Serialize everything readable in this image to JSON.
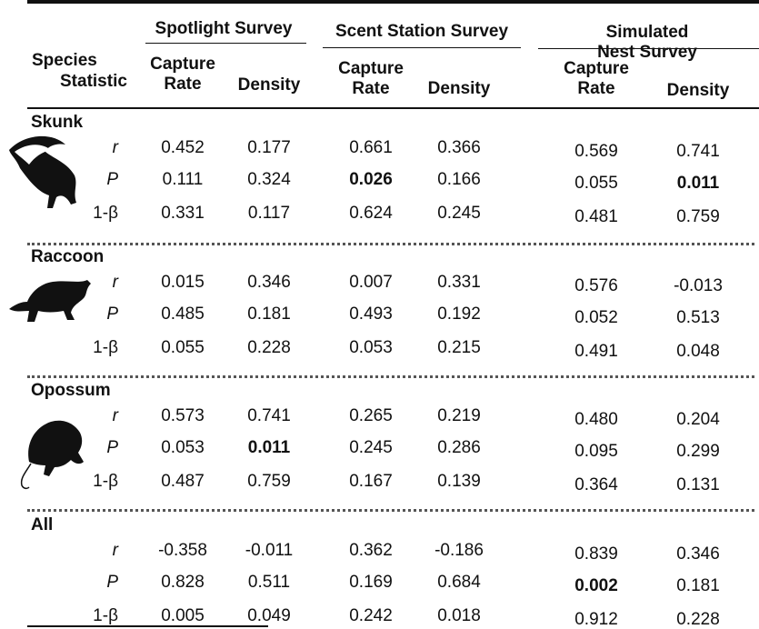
{
  "header": {
    "row_header": [
      "Species",
      "Statistic"
    ],
    "groups": [
      "Spotlight Survey",
      "Scent Station Survey",
      "Simulated Nest Survey"
    ],
    "columns": [
      "Capture\nRate",
      "Density",
      "Capture\nRate",
      "Density",
      "Capture\nRate",
      "Density"
    ]
  },
  "sections": [
    {
      "species": "Skunk",
      "rows": [
        {
          "statistic": "r",
          "values": [
            "0.452",
            "0.177",
            "0.661",
            "0.366",
            "0.569",
            "0.741"
          ],
          "bold": []
        },
        {
          "statistic": "P",
          "values": [
            "0.111",
            "0.324",
            "0.026",
            "0.166",
            "0.055",
            "0.011"
          ],
          "bold": [
            2,
            5
          ]
        },
        {
          "statistic": "1-β",
          "values": [
            "0.331",
            "0.117",
            "0.624",
            "0.245",
            "0.481",
            "0.759"
          ],
          "bold": []
        }
      ]
    },
    {
      "species": "Raccoon",
      "rows": [
        {
          "statistic": "r",
          "values": [
            "0.015",
            "0.346",
            "0.007",
            "0.331",
            "0.576",
            "-0.013"
          ],
          "bold": []
        },
        {
          "statistic": "P",
          "values": [
            "0.485",
            "0.181",
            "0.493",
            "0.192",
            "0.052",
            "0.513"
          ],
          "bold": []
        },
        {
          "statistic": "1-β",
          "values": [
            "0.055",
            "0.228",
            "0.053",
            "0.215",
            "0.491",
            "0.048"
          ],
          "bold": []
        }
      ]
    },
    {
      "species": "Opossum",
      "rows": [
        {
          "statistic": "r",
          "values": [
            "0.573",
            "0.741",
            "0.265",
            "0.219",
            "0.480",
            "0.204"
          ],
          "bold": []
        },
        {
          "statistic": "P",
          "values": [
            "0.053",
            "0.011",
            "0.245",
            "0.286",
            "0.095",
            "0.299"
          ],
          "bold": [
            1
          ]
        },
        {
          "statistic": "1-β",
          "values": [
            "0.487",
            "0.759",
            "0.167",
            "0.139",
            "0.364",
            "0.131"
          ],
          "bold": []
        }
      ]
    },
    {
      "species": "All",
      "rows": [
        {
          "statistic": "r",
          "values": [
            "-0.358",
            "-0.011",
            "0.362",
            "-0.186",
            "0.839",
            "0.346"
          ],
          "bold": []
        },
        {
          "statistic": "P",
          "values": [
            "0.828",
            "0.511",
            "0.169",
            "0.684",
            "0.002",
            "0.181"
          ],
          "bold": [
            4
          ]
        },
        {
          "statistic": "1-β",
          "values": [
            "0.005",
            "0.049",
            "0.242",
            "0.018",
            "0.912",
            "0.228"
          ],
          "bold": []
        }
      ]
    }
  ]
}
